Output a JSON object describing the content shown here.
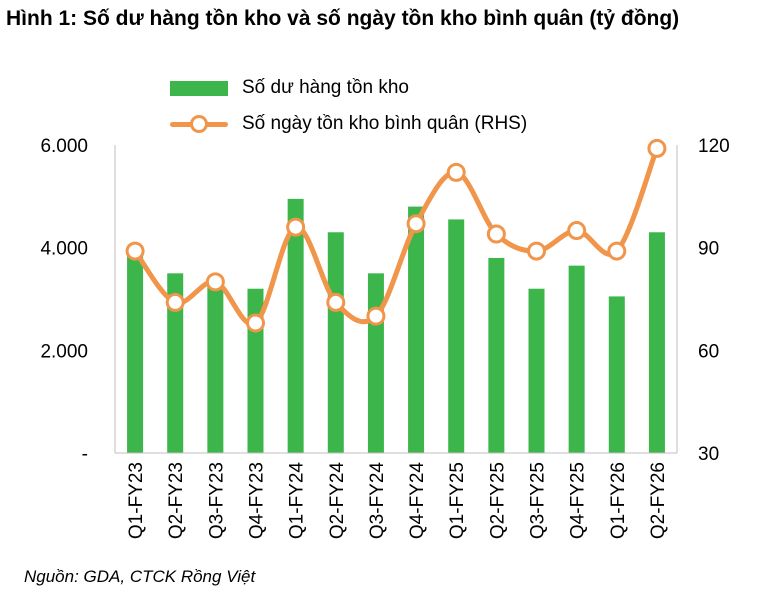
{
  "title": "Hình 1: Số dư hàng tồn kho và số ngày tồn kho bình quân (tỷ đồng)",
  "source": "Nguồn: GDA, CTCK Rồng Việt",
  "colors": {
    "bar": "#3cb54a",
    "line": "#f0954a"
  },
  "chart_data": {
    "type": "bar",
    "categories": [
      "Q1-FY23",
      "Q2-FY23",
      "Q3-FY23",
      "Q4-FY23",
      "Q1-FY24",
      "Q2-FY24",
      "Q3-FY24",
      "Q4-FY24",
      "Q1-FY25",
      "Q2-FY25",
      "Q3-FY25",
      "Q4-FY25",
      "Q1-FY26",
      "Q2-FY26"
    ],
    "series": [
      {
        "name": "Số dư hàng tồn kho",
        "type": "bar",
        "axis": "left",
        "values": [
          3900,
          3500,
          3250,
          3200,
          4950,
          4300,
          3500,
          4800,
          4550,
          3800,
          3200,
          3650,
          3050,
          4300
        ]
      },
      {
        "name": "Số ngày tồn kho bình quân (RHS)",
        "type": "line",
        "axis": "right",
        "values": [
          89,
          74,
          80,
          68,
          96,
          74,
          70,
          97,
          112,
          94,
          89,
          95,
          89,
          119
        ]
      }
    ],
    "y_left": {
      "ticks": [
        "-",
        "2.000",
        "4.000",
        "6.000"
      ],
      "tick_values": [
        0,
        2000,
        4000,
        6000
      ],
      "ylim": [
        0,
        6000
      ]
    },
    "y_right": {
      "ticks": [
        "30",
        "60",
        "90",
        "120"
      ],
      "tick_values": [
        30,
        60,
        90,
        120
      ],
      "ylim": [
        30,
        120
      ]
    },
    "grid": false,
    "legend": "top"
  }
}
